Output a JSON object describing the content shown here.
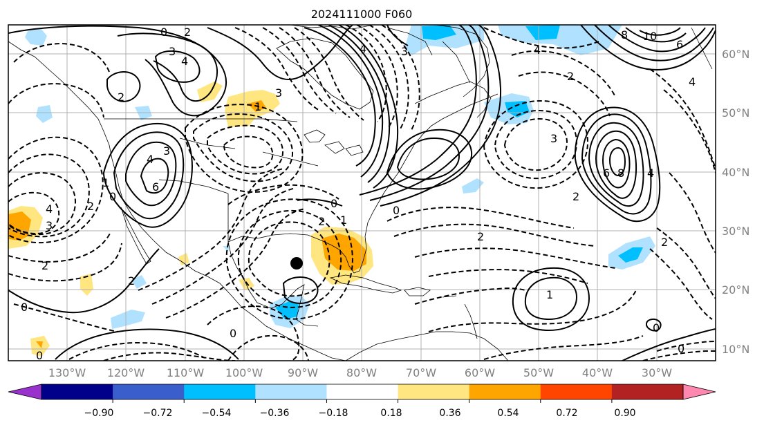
{
  "title": "2024111000 F060",
  "lon_labels": [
    "130°W",
    "120°W",
    "110°W",
    "100°W",
    "90°W",
    "80°W",
    "70°W",
    "60°W",
    "50°W",
    "40°W",
    "30°W"
  ],
  "lat_labels": [
    "60°N",
    "50°N",
    "40°N",
    "30°N",
    "20°N",
    "10°N"
  ],
  "colorbar": {
    "tick_labels": [
      "−0.90",
      "−0.72",
      "−0.54",
      "−0.36",
      "−0.18",
      "0.18",
      "0.36",
      "0.54",
      "0.72",
      "0.90"
    ],
    "colors": [
      "#9932cc",
      "#00008b",
      "#3a5fcd",
      "#00bfff",
      "#b0e2ff",
      "#ffffff",
      "#ffe680",
      "#ffa500",
      "#ff4500",
      "#b22222",
      "#ff88b0"
    ]
  },
  "contour_labels": {
    "a": "0",
    "b": "2",
    "c": "3",
    "d": "4",
    "e": "2",
    "f": "3",
    "g": "4",
    "h": "6",
    "i": "1",
    "j": "0",
    "k": "2",
    "l": "3",
    "m": "4",
    "n": "2",
    "o": "0",
    "p": "2",
    "q": "0",
    "r": "1",
    "s": "3",
    "t": "0",
    "u": "1",
    "v": "0",
    "w": "2",
    "x": "3",
    "y": "4",
    "z": "3",
    "aa": "2",
    "ab": "8",
    "ac": "6",
    "ad": "4",
    "ae": "2",
    "af": "8",
    "ag": "10",
    "ah": "6",
    "ai": "4",
    "aj": "2",
    "ak": "0",
    "al": "0",
    "am": "2",
    "an": "0"
  },
  "map": {
    "lon_range": [
      -140,
      -20
    ],
    "lat_range": [
      8,
      65
    ],
    "marker": "storm-center"
  }
}
